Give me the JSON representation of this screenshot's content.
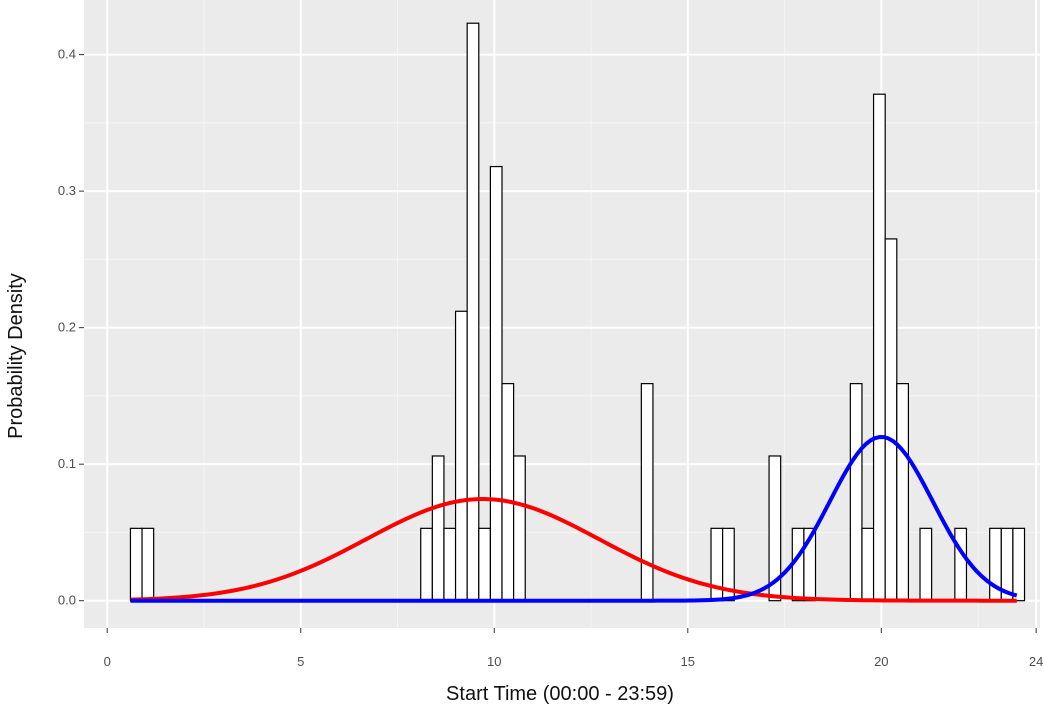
{
  "chart_data": {
    "type": "bar",
    "xlabel": "Start Time (00:00 - 23:59)",
    "ylabel": "Probability Density",
    "xlim": [
      -0.6,
      24.1
    ],
    "ylim": [
      -0.02,
      0.44
    ],
    "x_ticks": [
      0,
      5,
      10,
      15,
      20,
      24
    ],
    "y_ticks": [
      0.0,
      0.1,
      0.2,
      0.3,
      0.4
    ],
    "y_tick_labels": [
      "0.0",
      "0.1",
      "0.2",
      "0.3",
      "0.4"
    ],
    "x_minor_ticks": [
      2.5,
      7.5,
      12.5,
      17.5,
      22.5
    ],
    "y_minor_ticks": [
      0.05,
      0.15,
      0.25,
      0.35
    ],
    "grid": true,
    "background": "#ebebeb",
    "bin_width": 0.3,
    "histogram": [
      {
        "x": 0.6,
        "density": 0.053
      },
      {
        "x": 0.9,
        "density": 0.053
      },
      {
        "x": 8.1,
        "density": 0.053
      },
      {
        "x": 8.4,
        "density": 0.106
      },
      {
        "x": 8.7,
        "density": 0.053
      },
      {
        "x": 9.0,
        "density": 0.212
      },
      {
        "x": 9.3,
        "density": 0.423
      },
      {
        "x": 9.6,
        "density": 0.053
      },
      {
        "x": 9.9,
        "density": 0.318
      },
      {
        "x": 10.2,
        "density": 0.159
      },
      {
        "x": 10.5,
        "density": 0.106
      },
      {
        "x": 13.8,
        "density": 0.159
      },
      {
        "x": 15.6,
        "density": 0.053
      },
      {
        "x": 15.9,
        "density": 0.053
      },
      {
        "x": 17.1,
        "density": 0.106
      },
      {
        "x": 17.7,
        "density": 0.053
      },
      {
        "x": 18.0,
        "density": 0.053
      },
      {
        "x": 19.2,
        "density": 0.159
      },
      {
        "x": 19.5,
        "density": 0.053
      },
      {
        "x": 19.8,
        "density": 0.371
      },
      {
        "x": 20.1,
        "density": 0.265
      },
      {
        "x": 20.4,
        "density": 0.159
      },
      {
        "x": 21.0,
        "density": 0.053
      },
      {
        "x": 21.9,
        "density": 0.053
      },
      {
        "x": 22.8,
        "density": 0.053
      },
      {
        "x": 23.1,
        "density": 0.053
      },
      {
        "x": 23.4,
        "density": 0.053
      }
    ],
    "series": [
      {
        "kind": "normal-density",
        "color": "#ff0000",
        "mean": 9.7,
        "sd": 3.0,
        "weight": 0.56,
        "x_range": [
          0.6,
          23.5
        ]
      },
      {
        "kind": "normal-density",
        "color": "#0000ff",
        "mean": 20.0,
        "sd": 1.33,
        "weight": 0.4,
        "x_range": [
          0.6,
          23.5
        ]
      }
    ],
    "bar_fill": "#ffffff",
    "bar_stroke": "#000000"
  }
}
